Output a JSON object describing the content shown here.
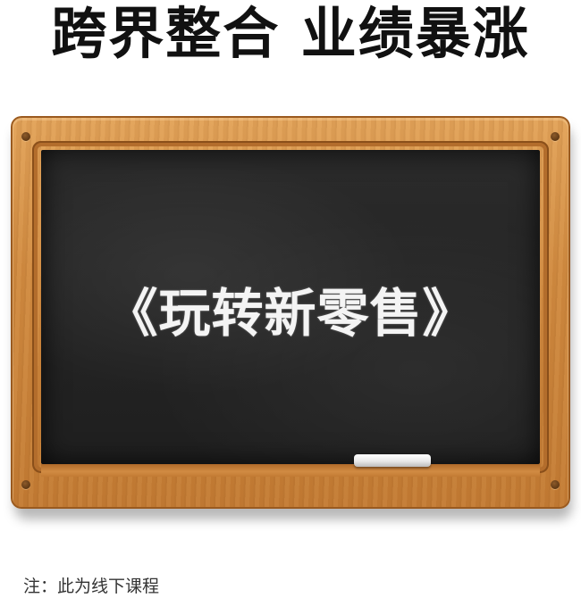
{
  "headline": "跨界整合 业绩暴涨",
  "chalkboard": {
    "title": "《玩转新零售》"
  },
  "note": "注：此为线下课程",
  "colors": {
    "headline": "#111111",
    "wood": "#d08a40",
    "chalkboard": "#242424",
    "chalk_text": "#f4f4f4"
  }
}
